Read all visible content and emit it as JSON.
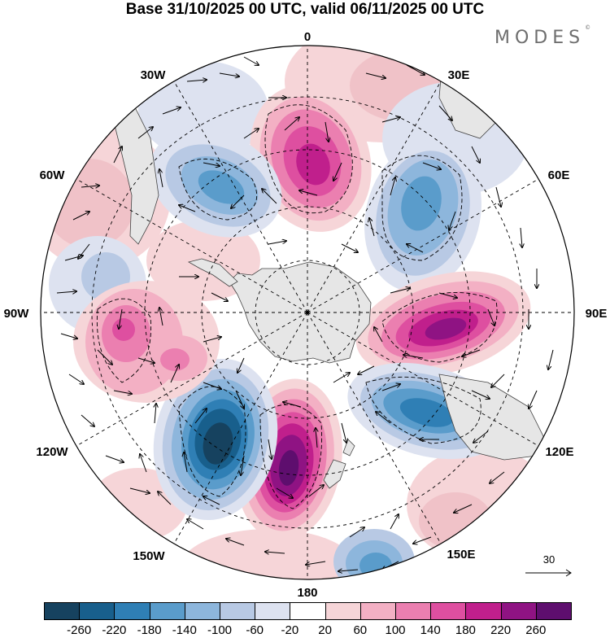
{
  "title": "Base 31/10/2025 00 UTC, valid 06/11/2025 00 UTC",
  "logo": "MODES",
  "logo_mark": "©",
  "longitude_labels": [
    "0",
    "30E",
    "60E",
    "90E",
    "120E",
    "150E",
    "180",
    "150W",
    "120W",
    "90W",
    "60W",
    "30W"
  ],
  "reference_vector": "30",
  "colorbar": {
    "ticks": [
      "-260",
      "-220",
      "-180",
      "-140",
      "-100",
      "-60",
      "-20",
      "20",
      "60",
      "100",
      "140",
      "180",
      "220",
      "260"
    ],
    "colors": [
      "#16425f",
      "#185f8c",
      "#2f7fb5",
      "#5a9ccb",
      "#8db6dc",
      "#b8c9e4",
      "#dde2f0",
      "#ffffff",
      "#f6d5d8",
      "#f3b0c4",
      "#eb7fb0",
      "#de4fa0",
      "#c01f8c",
      "#8f1383",
      "#5e0e6e"
    ]
  },
  "colors": {
    "land": "#e6e6e6",
    "coast": "#444444",
    "grid": "#000000"
  }
}
